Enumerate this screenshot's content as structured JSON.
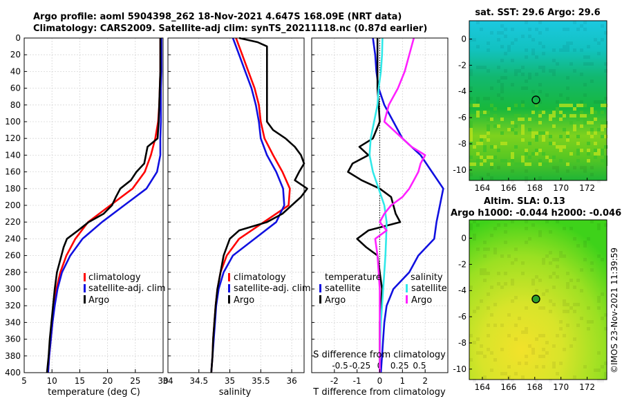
{
  "header": {
    "title_line1": "Argo profile: aoml 5904398_262 18-Nov-2021 4.647S 168.09E (NRT data)",
    "title_line2": "Climatology: CARS2009. Satellite-adj clim: synTS_20211118.nc (0.87d earlier)"
  },
  "colors": {
    "climatology": "#ff0000",
    "satellite": "#1010e0",
    "argo": "#000000",
    "salinity_sat": "#30e8e8",
    "salinity_argo": "#ff20ff"
  },
  "depth_ticks": [
    "0",
    "20",
    "40",
    "60",
    "80",
    "100",
    "120",
    "140",
    "160",
    "180",
    "200",
    "220",
    "240",
    "260",
    "280",
    "300",
    "320",
    "340",
    "360",
    "380",
    "400"
  ],
  "chart_data": [
    {
      "type": "line",
      "id": "temperature",
      "xlabel": "temperature (deg C)",
      "xlim": [
        5,
        30
      ],
      "ylim": [
        0,
        400
      ],
      "xticks": [
        "5",
        "10",
        "15",
        "20",
        "25",
        "30"
      ],
      "legend": [
        "climatology",
        "satellite-adj. clim",
        "Argo"
      ],
      "series": [
        {
          "name": "climatology",
          "color": "#ff0000",
          "depth": [
            0,
            20,
            40,
            60,
            80,
            100,
            120,
            140,
            160,
            180,
            200,
            220,
            240,
            260,
            280,
            300,
            320,
            340,
            360,
            380,
            400
          ],
          "values": [
            29.5,
            29.5,
            29.5,
            29.4,
            29.3,
            29.1,
            28.6,
            27.8,
            26.7,
            24.5,
            20.5,
            16.5,
            14.2,
            12.6,
            11.5,
            10.8,
            10.4,
            10.1,
            9.8,
            9.5,
            9.3
          ]
        },
        {
          "name": "satellite-adj. clim",
          "color": "#1010e0",
          "depth": [
            0,
            20,
            40,
            60,
            80,
            100,
            120,
            140,
            160,
            180,
            200,
            220,
            240,
            260,
            280,
            300,
            320,
            340,
            360,
            380,
            400
          ],
          "values": [
            29.7,
            29.7,
            29.7,
            29.6,
            29.6,
            29.6,
            29.5,
            29.5,
            28.9,
            27.0,
            23.0,
            19.0,
            15.5,
            13.3,
            11.8,
            11.0,
            10.5,
            10.1,
            9.8,
            9.5,
            9.3
          ]
        },
        {
          "name": "Argo",
          "color": "#000000",
          "depth": [
            0,
            20,
            40,
            60,
            80,
            100,
            120,
            130,
            140,
            150,
            160,
            170,
            180,
            190,
            200,
            210,
            220,
            230,
            240,
            250,
            260,
            280,
            300,
            320,
            340,
            360,
            380,
            400
          ],
          "values": [
            29.5,
            29.5,
            29.5,
            29.4,
            29.3,
            29.2,
            29.0,
            27.2,
            26.9,
            26.6,
            25.2,
            24.2,
            22.3,
            21.5,
            20.8,
            19.3,
            16.6,
            14.7,
            12.7,
            12.1,
            11.7,
            10.9,
            10.5,
            10.2,
            9.9,
            9.6,
            9.4,
            9.1
          ]
        }
      ]
    },
    {
      "type": "line",
      "id": "salinity",
      "xlabel": "salinity",
      "xlim": [
        34,
        36.2
      ],
      "ylim": [
        0,
        400
      ],
      "xticks": [
        "34",
        "34.5",
        "35",
        "35.5",
        "36"
      ],
      "legend": [
        "climatology",
        "satellite-adj. clim",
        "Argo"
      ],
      "series": [
        {
          "name": "climatology",
          "color": "#ff0000",
          "depth": [
            0,
            20,
            40,
            60,
            80,
            100,
            120,
            140,
            160,
            180,
            200,
            220,
            240,
            260,
            280,
            300,
            320,
            340,
            360,
            380,
            400
          ],
          "values": [
            35.1,
            35.2,
            35.3,
            35.4,
            35.47,
            35.5,
            35.56,
            35.7,
            35.85,
            35.97,
            35.95,
            35.55,
            35.15,
            34.95,
            34.85,
            34.8,
            34.77,
            34.75,
            34.73,
            34.72,
            34.7
          ]
        },
        {
          "name": "satellite-adj. clim",
          "color": "#1010e0",
          "depth": [
            0,
            20,
            40,
            60,
            80,
            100,
            120,
            140,
            160,
            180,
            200,
            220,
            240,
            260,
            280,
            300,
            320,
            340,
            360,
            380,
            400
          ],
          "values": [
            35.05,
            35.15,
            35.25,
            35.35,
            35.42,
            35.47,
            35.5,
            35.6,
            35.75,
            35.86,
            35.88,
            35.75,
            35.4,
            35.05,
            34.9,
            34.82,
            34.78,
            34.76,
            34.74,
            34.72,
            34.7
          ]
        },
        {
          "name": "Argo",
          "color": "#000000",
          "depth": [
            0,
            5,
            10,
            30,
            40,
            60,
            80,
            90,
            100,
            110,
            120,
            130,
            140,
            150,
            160,
            170,
            180,
            190,
            200,
            210,
            220,
            230,
            240,
            260,
            280,
            300,
            320,
            340,
            360,
            380,
            400
          ],
          "values": [
            35.15,
            35.45,
            35.6,
            35.6,
            35.6,
            35.6,
            35.6,
            35.6,
            35.6,
            35.7,
            35.9,
            36.05,
            36.15,
            36.2,
            36.12,
            36.05,
            36.25,
            36.15,
            36.0,
            35.85,
            35.6,
            35.15,
            35.0,
            34.9,
            34.85,
            34.8,
            34.77,
            34.75,
            34.73,
            34.72,
            34.7
          ]
        }
      ]
    },
    {
      "type": "line",
      "id": "difference",
      "xlabel": "T difference from climatology",
      "top_axis_label": "S difference from climatology",
      "xlim": [
        -3,
        3
      ],
      "ylim": [
        0,
        400
      ],
      "xticks": [
        "-2",
        "-1",
        "0",
        "1",
        "2"
      ],
      "s_ticks": [
        "-0.5",
        "-0.25",
        "0",
        "0.25",
        "0.5"
      ],
      "legend_headers": [
        "temperature",
        "salinity"
      ],
      "legend": [
        "satellite",
        "Argo",
        "satellite",
        "Argo"
      ],
      "series": [
        {
          "name": "temperature satellite",
          "color": "#1010e0",
          "depth": [
            0,
            20,
            40,
            60,
            80,
            100,
            120,
            140,
            160,
            180,
            200,
            220,
            240,
            260,
            280,
            300,
            320,
            340,
            360,
            380,
            400
          ],
          "values": [
            -0.3,
            -0.2,
            -0.15,
            -0.05,
            0.2,
            0.6,
            1.0,
            1.8,
            2.3,
            2.8,
            2.65,
            2.5,
            2.4,
            1.7,
            1.3,
            0.6,
            0.3,
            0.2,
            0.15,
            0.1,
            0.05
          ]
        },
        {
          "name": "temperature Argo",
          "color": "#000000",
          "depth": [
            0,
            20,
            40,
            60,
            80,
            100,
            120,
            130,
            140,
            150,
            160,
            170,
            180,
            190,
            200,
            210,
            220,
            230,
            240,
            250,
            260,
            280,
            300,
            320,
            340,
            360,
            380,
            400
          ],
          "values": [
            -0.1,
            -0.1,
            -0.1,
            -0.1,
            -0.05,
            0.0,
            -0.3,
            -0.9,
            -0.5,
            -1.2,
            -1.4,
            -0.8,
            0.0,
            0.5,
            0.6,
            0.7,
            0.9,
            -0.5,
            -1.0,
            -0.6,
            -0.1,
            0.0,
            0.1,
            0.05,
            0.0,
            0.0,
            0.0,
            0.0
          ]
        },
        {
          "name": "salinity satellite",
          "color": "#30e8e8",
          "depth": [
            0,
            20,
            40,
            60,
            80,
            100,
            120,
            140,
            160,
            180,
            200,
            220,
            240,
            260,
            280,
            300,
            320,
            340,
            360,
            380,
            400
          ],
          "values": [
            0.12,
            0.1,
            0.05,
            -0.05,
            -0.1,
            -0.25,
            -0.4,
            -0.45,
            -0.3,
            -0.05,
            0.2,
            0.3,
            0.28,
            0.25,
            0.2,
            0.15,
            0.1,
            0.05,
            0.02,
            0.0,
            0.0
          ]
        },
        {
          "name": "salinity Argo",
          "color": "#ff20ff",
          "depth": [
            0,
            20,
            40,
            60,
            80,
            100,
            120,
            130,
            140,
            150,
            160,
            170,
            180,
            190,
            200,
            210,
            220,
            230,
            240,
            260,
            280,
            300,
            320,
            340,
            360,
            380,
            400
          ],
          "values": [
            1.5,
            1.3,
            1.1,
            0.8,
            0.4,
            0.2,
            1.0,
            1.4,
            2.0,
            1.8,
            1.7,
            1.5,
            1.3,
            1.0,
            0.5,
            0.2,
            0.0,
            0.3,
            -0.2,
            -0.1,
            -0.05,
            0.0,
            0.0,
            0.0,
            0.0,
            0.0,
            0.0
          ]
        }
      ]
    },
    {
      "type": "heatmap",
      "id": "sst_map",
      "title": "sat. SST: 29.6 Argo: 29.6",
      "xticks": [
        "164",
        "166",
        "168",
        "170",
        "172"
      ],
      "yticks": [
        "0",
        "-2",
        "-4",
        "-6",
        "-8",
        "-10"
      ],
      "xlim": [
        163,
        173.5
      ],
      "ylim": [
        -10.8,
        1.4
      ],
      "marker": {
        "lon": 168.09,
        "lat": -4.647
      }
    },
    {
      "type": "heatmap",
      "id": "sla_map",
      "title_line1": "Altim. SLA: 0.13",
      "title_line2": "Argo h1000: -0.044 h2000: -0.046",
      "xticks": [
        "164",
        "166",
        "168",
        "170",
        "172"
      ],
      "yticks": [
        "0",
        "-2",
        "-4",
        "-6",
        "-8",
        "-10"
      ],
      "xlim": [
        163,
        173.5
      ],
      "ylim": [
        -10.8,
        1.4
      ],
      "marker": {
        "lon": 168.09,
        "lat": -4.647
      }
    }
  ],
  "watermark": "©IMOS 23-Nov-2021 11:39:59"
}
